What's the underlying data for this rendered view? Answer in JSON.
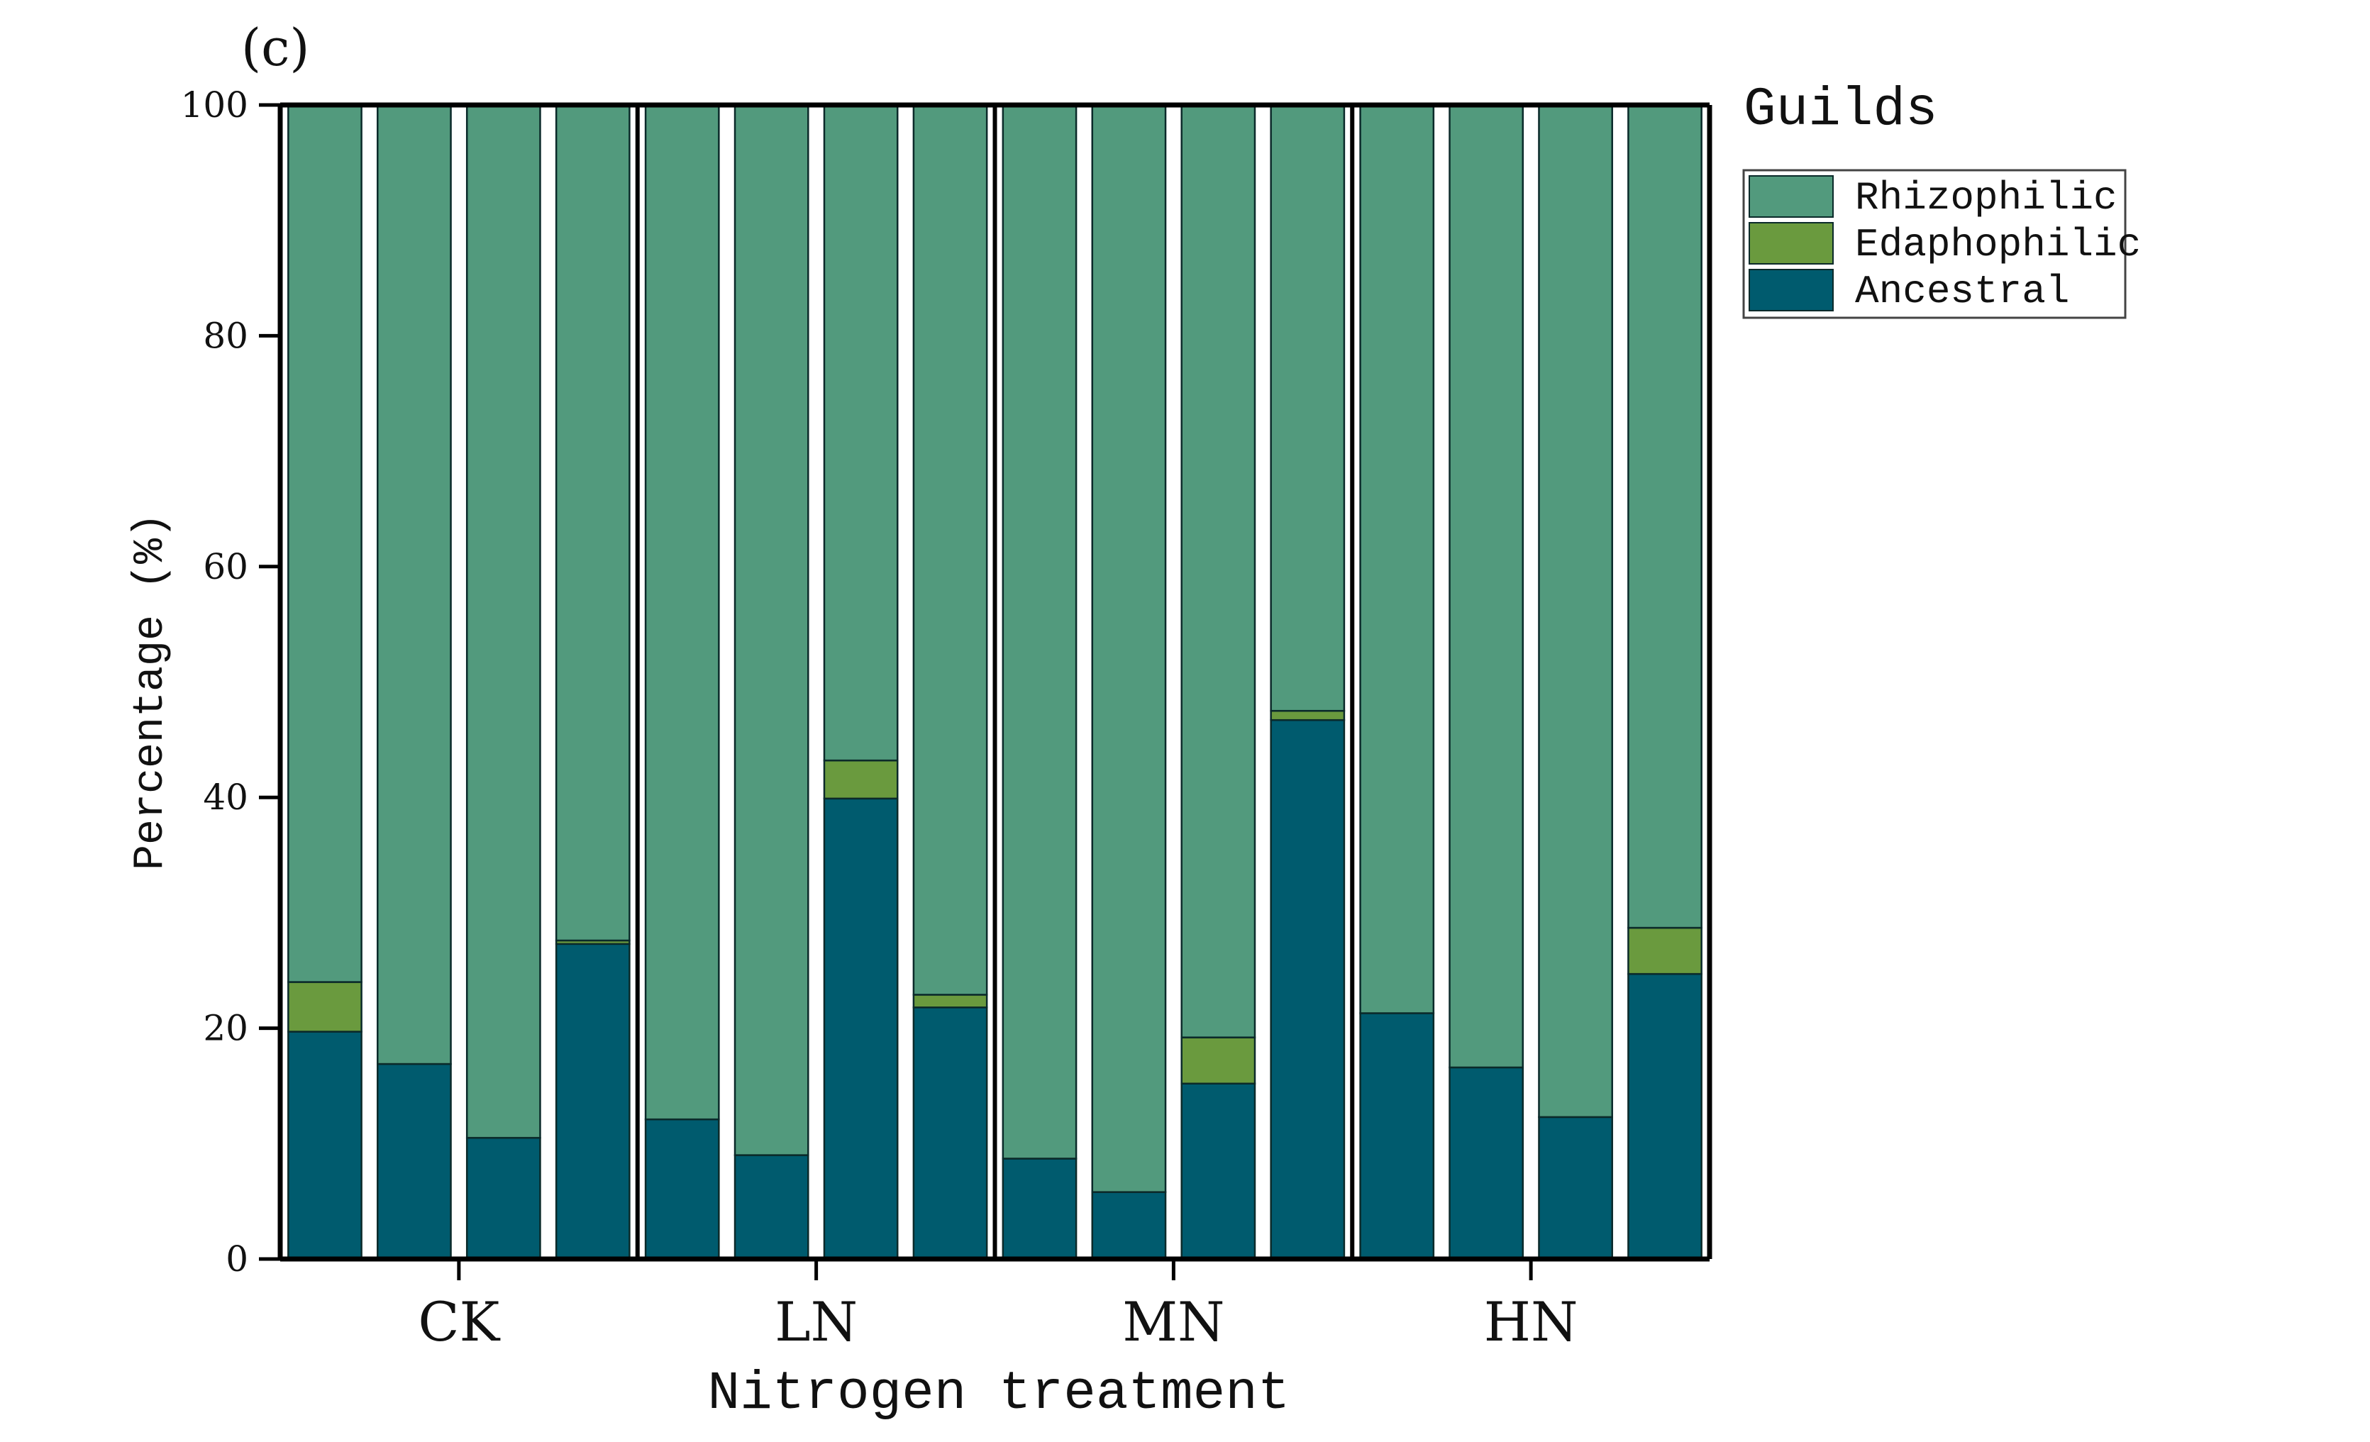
{
  "chart_data": {
    "type": "bar",
    "stacked": true,
    "panel_label": "(c)",
    "title": "",
    "xlabel": "Nitrogen treatment",
    "ylabel": "Percentage (%)",
    "ylim": [
      0,
      100
    ],
    "yticks": [
      "0",
      "20",
      "40",
      "60",
      "80",
      "100"
    ],
    "groups": [
      "CK",
      "LN",
      "MN",
      "HN"
    ],
    "bars_per_group": 4,
    "legend": {
      "title": "Guilds",
      "position": "top-right, outside plot",
      "entries": [
        "Rhizophilic",
        "Edaphophilic",
        "Ancestral"
      ]
    },
    "series": [
      {
        "name": "Ancestral",
        "color": "#005b6e",
        "values": [
          19.7,
          16.9,
          10.5,
          27.3,
          12.1,
          9.0,
          39.9,
          21.8,
          8.7,
          5.8,
          15.2,
          46.7,
          21.3,
          16.6,
          12.3,
          24.7
        ]
      },
      {
        "name": "Edaphophilic",
        "color": "#6a9a3e",
        "values": [
          4.3,
          0.0,
          0.0,
          0.3,
          0.0,
          0.0,
          3.3,
          1.1,
          0.0,
          0.0,
          4.0,
          0.8,
          0.0,
          0.0,
          0.0,
          4.0
        ]
      },
      {
        "name": "Rhizophilic",
        "color": "#529a7d",
        "values": [
          76.0,
          83.1,
          89.5,
          72.4,
          87.9,
          91.0,
          56.8,
          77.1,
          91.3,
          94.2,
          80.8,
          52.5,
          78.7,
          83.4,
          87.7,
          71.3
        ]
      }
    ]
  }
}
